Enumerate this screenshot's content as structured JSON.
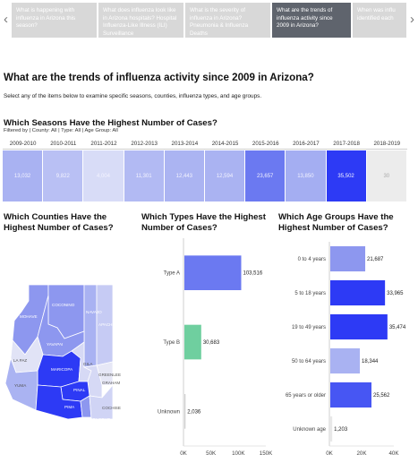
{
  "story": {
    "prev_icon": "chevron-left-icon",
    "next_icon": "chevron-right-icon",
    "tabs": [
      {
        "label": "What is happening with influenza in Arizona this season?",
        "active": false
      },
      {
        "label": "What does influenza look like in Arizona hospitals? Hospital Influenza-Like Illness (ILI) Surveillance",
        "active": false
      },
      {
        "label": "What is the severity of influenza in Arizona? Pneumonia & Influenza Deaths",
        "active": false
      },
      {
        "label": "What are the trends of influenza activity since 2009 in Arizona?",
        "active": true
      },
      {
        "label": "When was influ identified each",
        "active": false
      }
    ]
  },
  "page": {
    "title": "What are the trends of influenza activity since 2009 in Arizona?",
    "instructions": "Select any of the items below to examine specific seasons, counties, influenza types, and age groups."
  },
  "seasons": {
    "title": "Which Seasons Have the Highest Number of Cases?",
    "filter_text": "Filtered by | County: All | Type: All | Age Group: All",
    "items": [
      {
        "label": "2009-2010",
        "value": "13,032",
        "color": "#a9b2f2"
      },
      {
        "label": "2010-2011",
        "value": "9,822",
        "color": "#b9c0f4"
      },
      {
        "label": "2011-2012",
        "value": "4,004",
        "color": "#d8dcf7"
      },
      {
        "label": "2012-2013",
        "value": "11,301",
        "color": "#b2baf3"
      },
      {
        "label": "2013-2014",
        "value": "12,443",
        "color": "#abb4f2"
      },
      {
        "label": "2014-2015",
        "value": "12,594",
        "color": "#aab3f2"
      },
      {
        "label": "2015-2016",
        "value": "23,657",
        "color": "#6b79f1"
      },
      {
        "label": "2016-2017",
        "value": "13,850",
        "color": "#a4aef2"
      },
      {
        "label": "2017-2018",
        "value": "35,502",
        "color": "#2d3af5"
      },
      {
        "label": "2018-2019",
        "value": "30",
        "color": "#ececec"
      }
    ]
  },
  "counties": {
    "title": "Which Counties Have the Highest Number of Cases?",
    "labels": [
      "MOHAVE",
      "COCONINO",
      "NAVAJO",
      "APACHE",
      "YAVAPAI",
      "LA PAZ",
      "MARICOPA",
      "GILA",
      "GREENLEE",
      "GRAHAM",
      "YUMA",
      "PINAL",
      "PIMA",
      "SANTA CRUZ",
      "COCHISE"
    ],
    "colors": {
      "mohave": "#8d97ef",
      "coconino": "#8d97ef",
      "navajo": "#a9b2f2",
      "apache": "#c6cbf4",
      "yavapai": "#8d97ef",
      "lapaz": "#e1e3f6",
      "maricopa": "#2d3af5",
      "gila": "#d6d9f5",
      "greenlee": "#e6e7f6",
      "graham": "#d6d9f5",
      "yuma": "#aab3f2",
      "pinal": "#2d3af5",
      "pima": "#2d3af5",
      "santacruz": "#8d97ef",
      "cochise": "#d0d4f5"
    }
  },
  "chart_data": [
    {
      "type": "bar",
      "title": "Which Types Have the Highest Number of Cases?",
      "categories": [
        "Type A",
        "Type B",
        "Unknown"
      ],
      "values": [
        103516,
        30683,
        2036
      ],
      "value_labels": [
        "103,516",
        "30,683",
        "2,036"
      ],
      "colors": [
        "#6b79f1",
        "#6fcf9f",
        "#cfcfcf"
      ],
      "xticks": [
        "0K",
        "50K",
        "100K",
        "150K"
      ],
      "xlim": [
        0,
        150000
      ]
    },
    {
      "type": "bar",
      "title": "Which Age Groups Have the Highest Number of Cases?",
      "categories": [
        "0 to 4 years",
        "5 to 18 years",
        "19 to 49 years",
        "50 to 64 years",
        "65 years or older",
        "Unknown age"
      ],
      "values": [
        21687,
        33965,
        35474,
        18344,
        25562,
        1203
      ],
      "value_labels": [
        "21,687",
        "33,965",
        "35,474",
        "18,344",
        "25,562",
        "1,203"
      ],
      "colors": [
        "#8d97ef",
        "#2d3af5",
        "#2d3af5",
        "#a9b2f2",
        "#4756f3",
        "#e8e8e8"
      ],
      "xticks": [
        "0K",
        "20K",
        "40K"
      ],
      "xlim": [
        0,
        40000
      ]
    }
  ]
}
